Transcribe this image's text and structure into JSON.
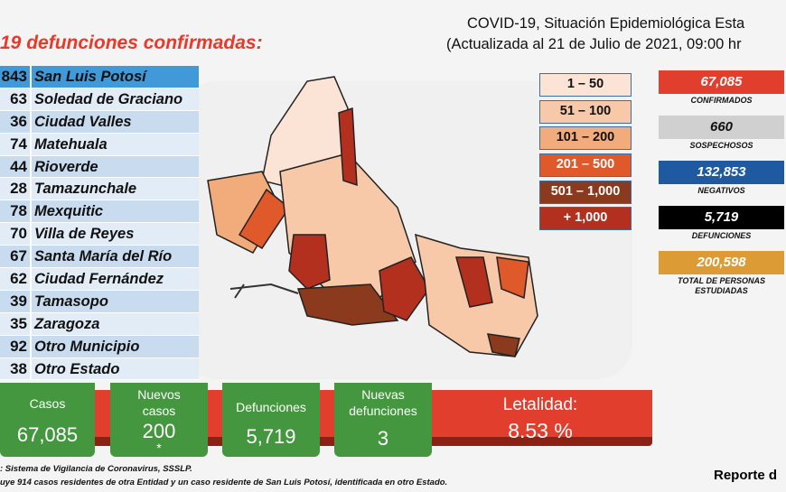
{
  "header": {
    "title_line1": "COVID-19, Situación Epidemiológica Esta",
    "title_line2": "(Actualizada al 21 de Julio de 2021, 09:00 hr"
  },
  "heading": "19 defunciones confirmadas:",
  "municipalities": [
    {
      "count": "843",
      "name": "San Luis Potosí"
    },
    {
      "count": "63",
      "name": "Soledad de Graciano"
    },
    {
      "count": "36",
      "name": "Ciudad Valles"
    },
    {
      "count": "74",
      "name": "Matehuala"
    },
    {
      "count": "44",
      "name": "Rioverde"
    },
    {
      "count": "28",
      "name": "Tamazunchale"
    },
    {
      "count": "78",
      "name": "Mexquitic"
    },
    {
      "count": "70",
      "name": "Villa de Reyes"
    },
    {
      "count": "67",
      "name": "Santa María del Río"
    },
    {
      "count": "62",
      "name": "Ciudad Fernández"
    },
    {
      "count": "39",
      "name": "Tamasopo"
    },
    {
      "count": "35",
      "name": "Zaragoza"
    },
    {
      "count": "92",
      "name": "Otro Municipio"
    },
    {
      "count": "38",
      "name": "Otro Estado"
    }
  ],
  "legend": [
    {
      "label": "1 – 50",
      "color": "#fbe4d5",
      "text": "#111"
    },
    {
      "label": "51 – 100",
      "color": "#f7c9a9",
      "text": "#111"
    },
    {
      "label": "101 – 200",
      "color": "#f2ac7c",
      "text": "#111"
    },
    {
      "label": "201 – 500",
      "color": "#e0592a",
      "text": "#fff"
    },
    {
      "label": "501 – 1,000",
      "color": "#8b3a1e",
      "text": "#fff"
    },
    {
      "label": "+ 1,000",
      "color": "#b3301e",
      "text": "#fff"
    }
  ],
  "stats": [
    {
      "value": "67,085",
      "label": "CONFIRMADOS",
      "color": "#e23e2e",
      "text": "#fff"
    },
    {
      "value": "660",
      "label": "SOSPECHOSOS",
      "color": "#d0d0d0",
      "text": "#111"
    },
    {
      "value": "132,853",
      "label": "NEGATIVOS",
      "color": "#1f5aa0",
      "text": "#fff"
    },
    {
      "value": "5,719",
      "label": "DEFUNCIONES",
      "color": "#000000",
      "text": "#fff"
    },
    {
      "value": "200,598",
      "label": "TOTAL DE PERSONAS ESTUDIADAS",
      "color": "#dd9b35",
      "text": "#fff"
    }
  ],
  "cards": [
    {
      "title": "Casos",
      "value": "67,085"
    },
    {
      "title": "Nuevos casos",
      "value": "200",
      "note": "*"
    },
    {
      "title": "Defunciones",
      "value": "5,719"
    },
    {
      "title": "Nuevas defunciones",
      "value": "3"
    }
  ],
  "lethality": {
    "title": "Letalidad:",
    "value": "8.53 %"
  },
  "footnotes": [
    ": Sistema de Vigilancia de Coronavirus, SSSLP.",
    "uye 914 casos residentes de otra Entidad y un caso residente de San Luis Potosí, identificada en otro Estado."
  ],
  "report": "Reporte d"
}
